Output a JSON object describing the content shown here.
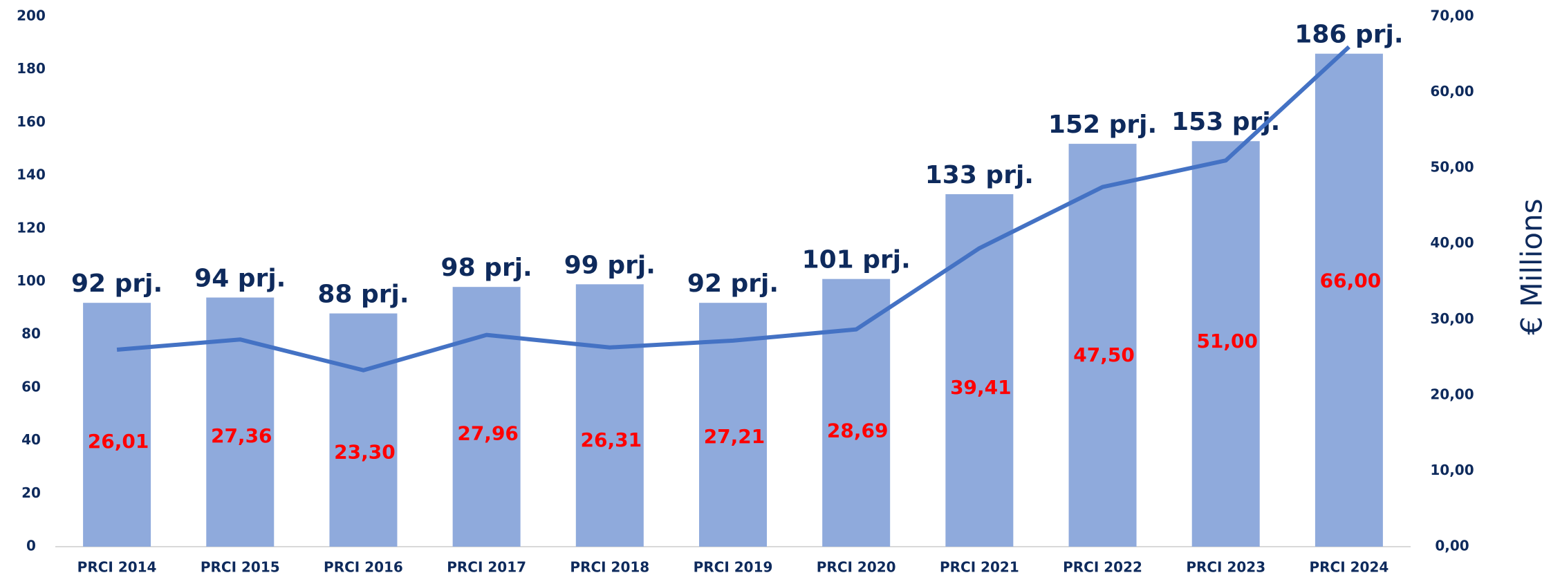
{
  "chart_data": {
    "type": "bar-line",
    "y2label": "€ Millions",
    "categories": [
      "PRCI 2014",
      "PRCI 2015",
      "PRCI 2016",
      "PRCI 2017",
      "PRCI 2018",
      "PRCI 2019",
      "PRCI 2020",
      "PRCI 2021",
      "PRCI 2022",
      "PRCI 2023",
      "PRCI 2024"
    ],
    "series": [
      {
        "type": "bar",
        "color": "#8faadc",
        "values": [
          92,
          94,
          88,
          98,
          99,
          92,
          101,
          133,
          152,
          153,
          186
        ],
        "value_labels": [
          "92 prj.",
          "94 prj.",
          "88 prj.",
          "98 prj.",
          "99 prj.",
          "92 prj.",
          "101 prj.",
          "133 prj.",
          "152 prj.",
          "153 prj.",
          "186 prj."
        ]
      },
      {
        "type": "line",
        "axis": "y2",
        "color": "#4472c4",
        "values": [
          26.01,
          27.36,
          23.3,
          27.96,
          26.31,
          27.21,
          28.69,
          39.41,
          47.5,
          51.0,
          66.0
        ],
        "value_labels": [
          "26,01",
          "27,36",
          "23,30",
          "27,96",
          "26,31",
          "27,21",
          "28,69",
          "39,41",
          "47,50",
          "51,00",
          "66,00"
        ]
      }
    ],
    "ylim": [
      0,
      200
    ],
    "yticks": [
      0,
      20,
      40,
      60,
      80,
      100,
      120,
      140,
      160,
      180,
      200
    ],
    "y2lim": [
      0,
      70
    ],
    "y2ticks": [
      {
        "value": 0,
        "label": "0,00"
      },
      {
        "value": 10,
        "label": "10,00"
      },
      {
        "value": 20,
        "label": "20,00"
      },
      {
        "value": 30,
        "label": "30,00"
      },
      {
        "value": 40,
        "label": "40,00"
      },
      {
        "value": 50,
        "label": "50,00"
      },
      {
        "value": 60,
        "label": "60,00"
      },
      {
        "value": 70,
        "label": "70,00"
      }
    ],
    "grid": false
  }
}
